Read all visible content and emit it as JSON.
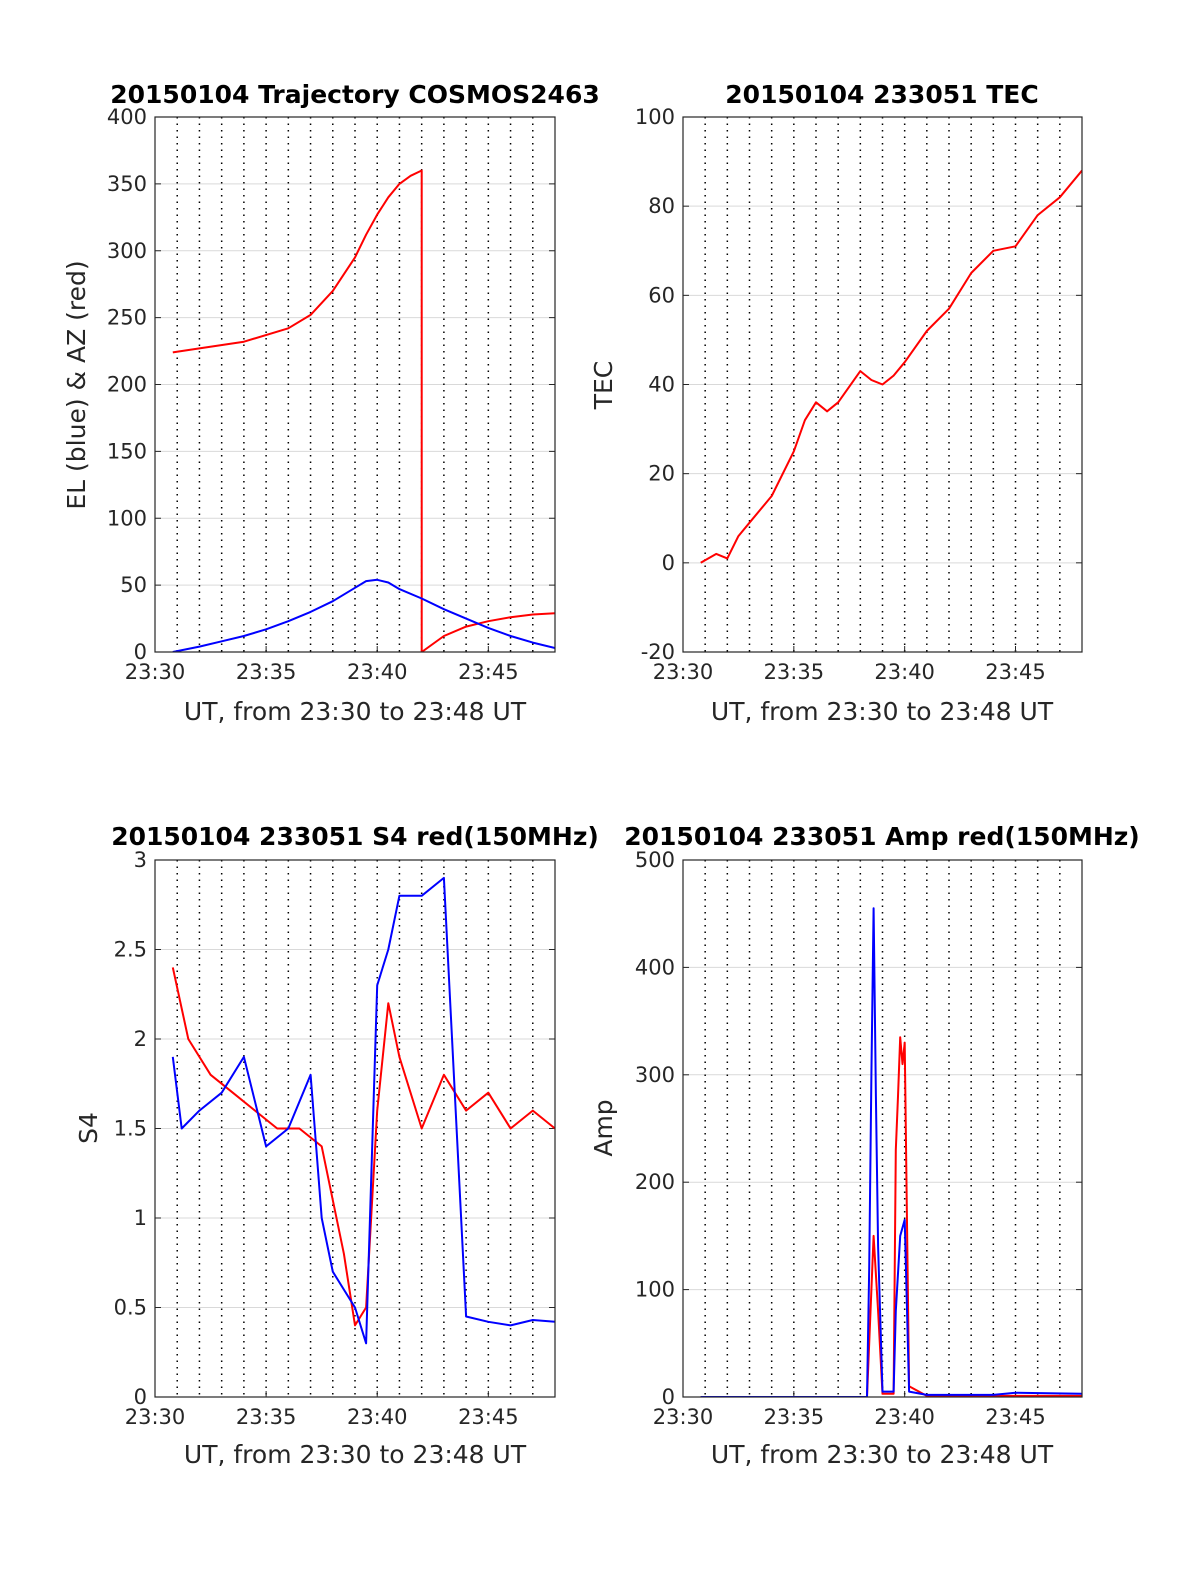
{
  "x_axis_label": "UT, from 23:30 to 23:48 UT",
  "x_ticks": [
    "23:30",
    "23:35",
    "23:40",
    "23:45"
  ],
  "colors": {
    "red": "#ff0000",
    "blue": "#0000ff",
    "grid": "#000000",
    "axes": "#262626"
  },
  "chart_data": [
    {
      "type": "line",
      "title": "20150104 Trajectory COSMOS2463",
      "xlabel": "UT, from 23:30 to 23:48 UT",
      "ylabel": "EL (blue) & AZ (red)",
      "xlim": [
        "23:30",
        "23:48"
      ],
      "ylim": [
        0,
        400
      ],
      "yticks": [
        "0",
        "50",
        "100",
        "150",
        "200",
        "250",
        "300",
        "350",
        "400"
      ],
      "grid": true,
      "series": [
        {
          "color": "red",
          "x": [
            "23:30.8",
            "23:32",
            "23:34",
            "23:36",
            "23:37",
            "23:38",
            "23:39",
            "23:39.5",
            "23:40",
            "23:40.5",
            "23:41",
            "23:41.5",
            "23:42",
            "23:42",
            "23:43",
            "23:44",
            "23:45",
            "23:46",
            "23:47",
            "23:48"
          ],
          "y": [
            224,
            227,
            232,
            242,
            252,
            270,
            295,
            312,
            327,
            340,
            350,
            356,
            360,
            0,
            12,
            19,
            23,
            26,
            28,
            29
          ]
        },
        {
          "color": "blue",
          "x": [
            "23:30.8",
            "23:32",
            "23:33",
            "23:34",
            "23:35",
            "23:36",
            "23:37",
            "23:38",
            "23:39",
            "23:39.5",
            "23:40",
            "23:40.5",
            "23:41",
            "23:42",
            "23:43",
            "23:44",
            "23:45",
            "23:46",
            "23:47",
            "23:48"
          ],
          "y": [
            0,
            4,
            8,
            12,
            17,
            23,
            30,
            38,
            48,
            53,
            54,
            52,
            47,
            40,
            32,
            25,
            18,
            12,
            7,
            3
          ]
        }
      ]
    },
    {
      "type": "line",
      "title": "20150104 233051 TEC",
      "xlabel": "UT, from 23:30 to 23:48 UT",
      "ylabel": "TEC",
      "xlim": [
        "23:30",
        "23:48"
      ],
      "ylim": [
        -20,
        100
      ],
      "yticks": [
        "-20",
        "0",
        "20",
        "40",
        "60",
        "80",
        "100"
      ],
      "grid": true,
      "series": [
        {
          "color": "red",
          "x": [
            "23:30.8",
            "23:31.5",
            "23:32",
            "23:32.5",
            "23:33",
            "23:34",
            "23:35",
            "23:35.5",
            "23:36",
            "23:36.5",
            "23:37",
            "23:38",
            "23:38.5",
            "23:39",
            "23:39.5",
            "23:40",
            "23:41",
            "23:42",
            "23:43",
            "23:44",
            "23:45",
            "23:46",
            "23:47",
            "23:48"
          ],
          "y": [
            0,
            2,
            1,
            6,
            9,
            15,
            25,
            32,
            36,
            34,
            36,
            43,
            41,
            40,
            42,
            45,
            52,
            57,
            65,
            70,
            71,
            78,
            82,
            88
          ]
        }
      ]
    },
    {
      "type": "line",
      "title": "20150104 233051 S4 red(150MHz)",
      "xlabel": "UT, from 23:30 to 23:48 UT",
      "ylabel": "S4",
      "xlim": [
        "23:30",
        "23:48"
      ],
      "ylim": [
        0,
        3
      ],
      "yticks": [
        "0",
        "0.5",
        "1",
        "1.5",
        "2",
        "2.5",
        "3"
      ],
      "grid": true,
      "series": [
        {
          "color": "red",
          "x": [
            "23:30.8",
            "23:31.5",
            "23:32.5",
            "23:33.5",
            "23:34.5",
            "23:35.5",
            "23:36.5",
            "23:37.5",
            "23:38.5",
            "23:39",
            "23:39.5",
            "23:40",
            "23:40.5",
            "23:41",
            "23:42",
            "23:43",
            "23:44",
            "23:45",
            "23:46",
            "23:47",
            "23:48"
          ],
          "y": [
            2.4,
            2.0,
            1.8,
            1.7,
            1.6,
            1.5,
            1.5,
            1.4,
            0.8,
            0.4,
            0.5,
            1.6,
            2.2,
            1.9,
            1.5,
            1.8,
            1.6,
            1.7,
            1.5,
            1.6,
            1.5
          ]
        },
        {
          "color": "blue",
          "x": [
            "23:30.8",
            "23:31.2",
            "23:32",
            "23:33",
            "23:34",
            "23:35",
            "23:36",
            "23:37",
            "23:37.5",
            "23:38",
            "23:38.5",
            "23:39",
            "23:39.5",
            "23:40",
            "23:40.5",
            "23:41",
            "23:42",
            "23:43",
            "23:44",
            "23:45",
            "23:46",
            "23:47",
            "23:48"
          ],
          "y": [
            1.9,
            1.5,
            1.6,
            1.7,
            1.9,
            1.4,
            1.5,
            1.8,
            1.0,
            0.7,
            0.6,
            0.5,
            0.3,
            2.3,
            2.5,
            2.8,
            2.8,
            2.9,
            0.45,
            0.42,
            0.4,
            0.43,
            0.42
          ]
        }
      ]
    },
    {
      "type": "line",
      "title": "20150104 233051 Amp red(150MHz)",
      "xlabel": "UT, from 23:30 to 23:48 UT",
      "ylabel": "Amp",
      "xlim": [
        "23:30",
        "23:48"
      ],
      "ylim": [
        0,
        500
      ],
      "yticks": [
        "0",
        "100",
        "200",
        "300",
        "400",
        "500"
      ],
      "grid": true,
      "series": [
        {
          "color": "red",
          "x": [
            "23:30.8",
            "23:38.3",
            "23:38.5",
            "23:38.6",
            "23:38.8",
            "23:39",
            "23:39.5",
            "23:39.6",
            "23:39.7",
            "23:39.8",
            "23:39.9",
            "23:40",
            "23:40.2",
            "23:41",
            "23:48"
          ],
          "y": [
            0,
            0,
            100,
            150,
            80,
            3,
            3,
            230,
            280,
            335,
            310,
            330,
            10,
            1,
            1
          ]
        },
        {
          "color": "blue",
          "x": [
            "23:30.8",
            "23:38.3",
            "23:38.4",
            "23:38.5",
            "23:38.6",
            "23:38.7",
            "23:38.8",
            "23:39",
            "23:39.5",
            "23:39.6",
            "23:39.8",
            "23:40",
            "23:40.2",
            "23:41",
            "23:44",
            "23:45",
            "23:48"
          ],
          "y": [
            0,
            0,
            120,
            300,
            455,
            280,
            140,
            5,
            5,
            80,
            150,
            165,
            5,
            2,
            2,
            4,
            3
          ]
        }
      ]
    }
  ]
}
